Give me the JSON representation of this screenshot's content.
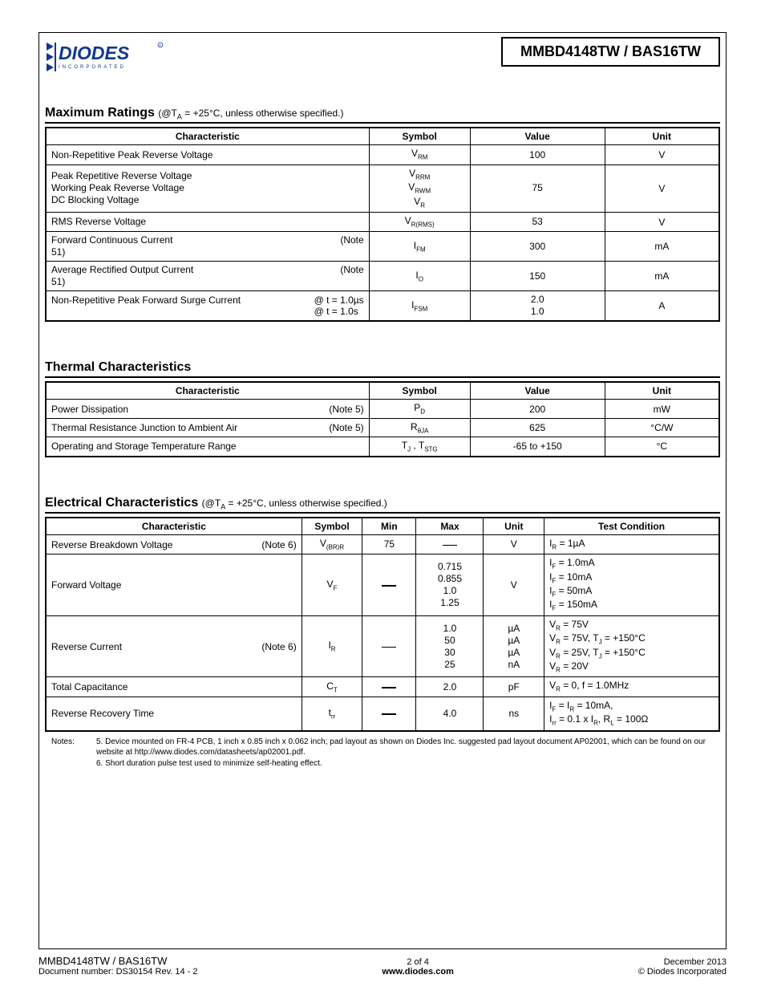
{
  "header": {
    "title": "MMBD4148TW / BAS16TW"
  },
  "sections": {
    "max": {
      "title": "Maximum Ratings",
      "condition": "(@TA = +25°C, unless otherwise specified.)",
      "cols": {
        "c1": "Characteristic",
        "c2": "Symbol",
        "c3": "Value",
        "c4": "Unit"
      },
      "rows": [
        {
          "char": "Non-Repetitive Peak Reverse Voltage",
          "note": "",
          "sym": [
            "V<sub class='subsm'>RM</sub>"
          ],
          "val": "100",
          "unit": "V"
        },
        {
          "char": "Peak Repetitive Reverse Voltage\nWorking Peak Reverse Voltage\nDC Blocking Voltage",
          "note": "",
          "sym": [
            "V<sub class='subsm'>RRM</sub>",
            "V<sub class='subsm'>RWM</sub>",
            "V<sub class='subsm'>R</sub>"
          ],
          "val": "75",
          "unit": "V"
        },
        {
          "char": "RMS Reverse Voltage",
          "note": "",
          "sym": [
            "V<sub class='subsm'>R(RMS)</sub>"
          ],
          "val": "53",
          "unit": "V"
        },
        {
          "char": "Forward Continuous Current\n51)",
          "note": "(Note",
          "sym": [
            "I<sub class='subsm'>FM</sub>"
          ],
          "val": "300",
          "unit": "mA"
        },
        {
          "char": "Average Rectified Output Current\n51)",
          "note": "(Note",
          "sym": [
            "I<sub class='subsm'>O</sub>"
          ],
          "val": "150",
          "unit": "mA"
        },
        {
          "char": "Non-Repetitive Peak Forward Surge Current",
          "note": "@ t = 1.0µs\n@ t = 1.0s",
          "sym": [
            "I<sub class='subsm'>FSM</sub>"
          ],
          "val": "2.0\n1.0",
          "unit": "A"
        }
      ]
    },
    "thermal": {
      "title": "Thermal Characteristics",
      "cols": {
        "c1": "Characteristic",
        "c2": "Symbol",
        "c3": "Value",
        "c4": "Unit"
      },
      "rows": [
        {
          "char": "Power Dissipation",
          "note": "(Note 5)",
          "sym": "P<sub class='subsm'>D</sub>",
          "val": "200",
          "unit": "mW"
        },
        {
          "char": "Thermal Resistance Junction to Ambient Air",
          "note": "(Note 5)",
          "sym": "R<sub class='subsm'>θJA</sub>",
          "val": "625",
          "unit": "°C/W"
        },
        {
          "char": "Operating and Storage Temperature Range",
          "note": "",
          "sym": "T<sub class='subsm'>J</sub> , T<sub class='subsm'>STG</sub>",
          "val": "-65 to +150",
          "unit": "°C"
        }
      ]
    },
    "elec": {
      "title": "Electrical Characteristics",
      "condition": "(@TA = +25°C, unless otherwise specified.)",
      "cols": {
        "c1": "Characteristic",
        "c2": "Symbol",
        "c3": "Min",
        "c4": "Max",
        "c5": "Unit",
        "c6": "Test Condition"
      },
      "rows": [
        {
          "char": "Reverse Breakdown Voltage",
          "note": "(Note 6)",
          "sym": "V<sub class='subsm'>(BR)R</sub>",
          "min": "75",
          "max": "—",
          "unit": "V",
          "cond": "I<sub class='subsm'>R</sub> = 1µA"
        },
        {
          "char": "Forward Voltage",
          "note": "",
          "sym": "V<sub class='subsm'>F</sub>",
          "min": "—",
          "max": "0.715\n0.855\n1.0\n1.25",
          "unit": "V",
          "cond": "I<sub class='subsm'>F</sub> = 1.0mA\nI<sub class='subsm'>F</sub> = 10mA\nI<sub class='subsm'>F</sub> = 50mA\nI<sub class='subsm'>F</sub> = 150mA"
        },
        {
          "char": "Reverse Current",
          "note": "(Note 6)",
          "sym": "I<sub class='subsm'>R</sub>",
          "min": "—",
          "max": "1.0\n50\n30\n25",
          "unit": "µA\nµA\nµA\nnA",
          "cond": "V<sub class='subsm'>R</sub> = 75V\nV<sub class='subsm'>R</sub> = 75V, T<sub class='subsm'>J</sub> = +150°C\nV<sub class='subsm'>R</sub> = 25V, T<sub class='subsm'>J</sub> = +150°C\nV<sub class='subsm'>R</sub> = 20V"
        },
        {
          "char": "Total Capacitance",
          "note": "",
          "sym": "C<sub class='subsm'>T</sub>",
          "min": "—",
          "max": "2.0",
          "unit": "pF",
          "cond": "V<sub class='subsm'>R</sub> = 0, f = 1.0MHz"
        },
        {
          "char": "Reverse Recovery Time",
          "note": "",
          "sym": "t<sub class='subsm'>rr</sub>",
          "min": "—",
          "max": "4.0",
          "unit": "ns",
          "cond": "I<sub class='subsm'>F</sub> = I<sub class='subsm'>R</sub> = 10mA,\nI<sub class='subsm'>rr</sub> = 0.1 x I<sub class='subsm'>R</sub>, R<sub class='subsm'>L</sub> = 100Ω"
        }
      ]
    }
  },
  "notes": {
    "label": "Notes:",
    "n5": "5. Device mounted on FR-4 PCB, 1 inch x 0.85 inch x 0.062 inch; pad layout as shown on Diodes Inc. suggested pad layout document AP02001, which can be found on our website at http://www.diodes.com/datasheets/ap02001.pdf.",
    "n6": "6. Short duration pulse test used to minimize self-heating effect."
  },
  "footer": {
    "part": "MMBD4148TW / BAS16TW",
    "docnum": "Document number: DS30154 Rev. 14 - 2",
    "page": "2 of 4",
    "url": "www.diodes.com",
    "date": "December 2013",
    "copyright": "© Diodes Incorporated"
  },
  "colors": {
    "text": "#000000",
    "logo_blue": "#11388f",
    "border": "#000000"
  },
  "colwidths": {
    "t1": [
      "48%",
      "15%",
      "20%",
      "17%"
    ],
    "t3": [
      "38%",
      "9%",
      "8%",
      "10%",
      "9%",
      "26%"
    ]
  }
}
